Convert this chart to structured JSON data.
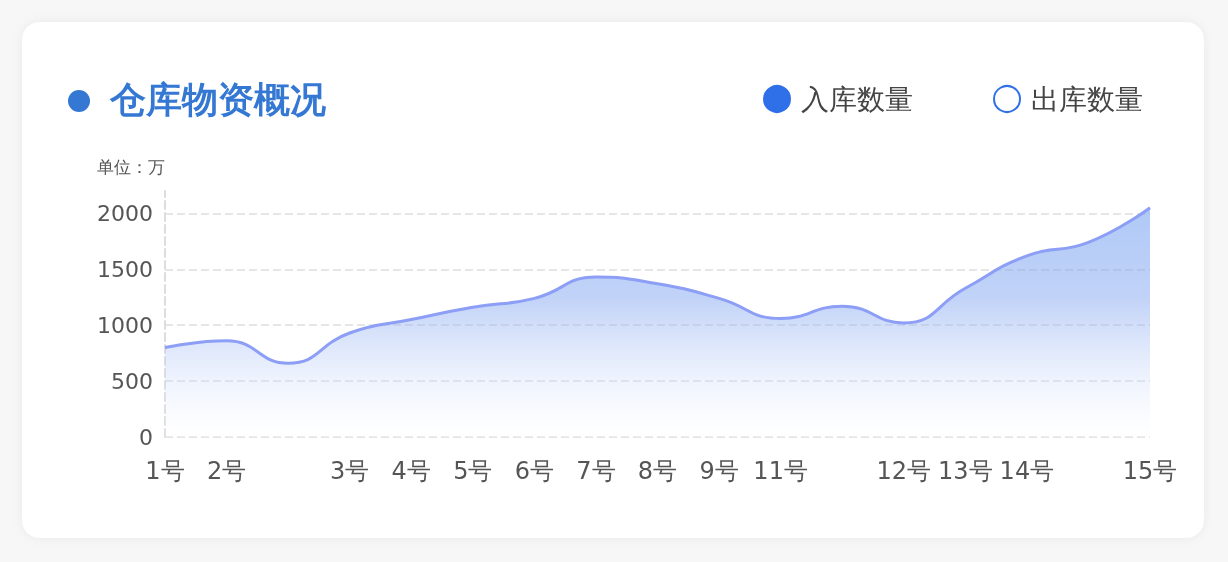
{
  "chart_data": {
    "type": "area",
    "title": "仓库物资概况",
    "ylabel": "单位：万",
    "categories": [
      "1号",
      "2号",
      null,
      "3号",
      "4号",
      "5号",
      "6号",
      "7号",
      "8号",
      "9号",
      "11号",
      null,
      "12号",
      "13号",
      "14号",
      null,
      "15号"
    ],
    "series": [
      {
        "name": "入库数量",
        "color": "#8c9ef5",
        "values": [
          800,
          860,
          660,
          930,
          1050,
          1160,
          1240,
          1430,
          1370,
          1240,
          1060,
          1170,
          1020,
          1330,
          1620,
          1740,
          2050
        ]
      },
      {
        "name": "出库数量",
        "color": "#ffffff",
        "values": [
          null,
          null,
          null,
          null,
          null,
          null,
          null,
          null,
          null,
          null,
          null,
          null,
          null,
          null,
          null,
          null,
          null
        ]
      }
    ],
    "ylim": [
      0,
      2200
    ],
    "yticks": [
      0,
      500,
      1000,
      1500,
      2000
    ],
    "grid": "y",
    "legend": "top right",
    "marker": "none"
  }
}
